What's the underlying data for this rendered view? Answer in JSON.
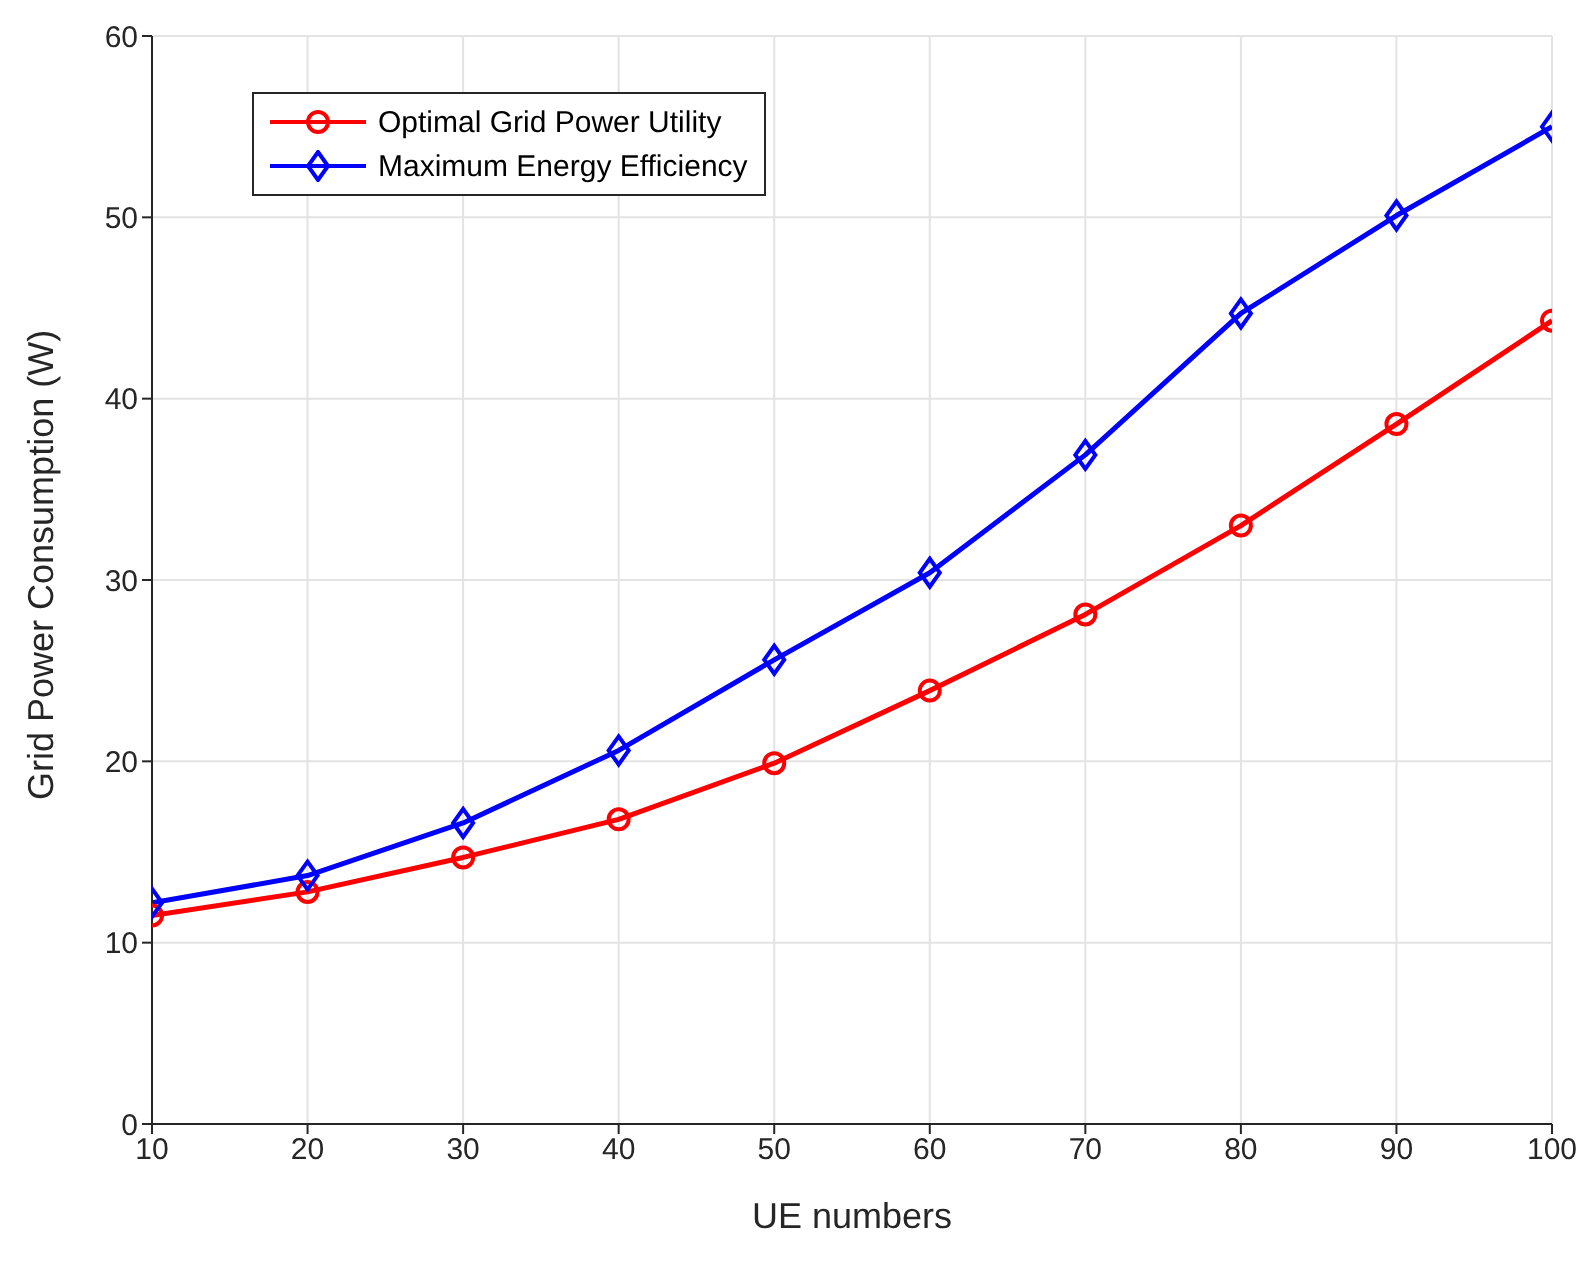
{
  "chart_data": {
    "type": "line",
    "xlabel": "UE numbers",
    "ylabel": "Grid Power Consumption (W)",
    "x": [
      10,
      20,
      30,
      40,
      50,
      60,
      70,
      80,
      90,
      100
    ],
    "series": [
      {
        "name": "Optimal Grid Power Utility",
        "color": "#ff0000",
        "marker": "circle",
        "values": [
          11.5,
          12.8,
          14.7,
          16.8,
          19.9,
          23.9,
          28.1,
          33.0,
          38.6,
          44.3
        ]
      },
      {
        "name": "Maximum Energy Efficiency",
        "color": "#0000ff",
        "marker": "diamond",
        "values": [
          12.2,
          13.7,
          16.6,
          20.6,
          25.6,
          30.4,
          36.9,
          44.7,
          50.1,
          55.0
        ]
      }
    ],
    "xlim": [
      10,
      100
    ],
    "xticks": [
      10,
      20,
      30,
      40,
      50,
      60,
      70,
      80,
      90,
      100
    ],
    "ylim": [
      0,
      60
    ],
    "yticks": [
      0,
      10,
      20,
      30,
      40,
      50,
      60
    ],
    "grid": true,
    "legend": "top left",
    "line_style": "solid"
  }
}
